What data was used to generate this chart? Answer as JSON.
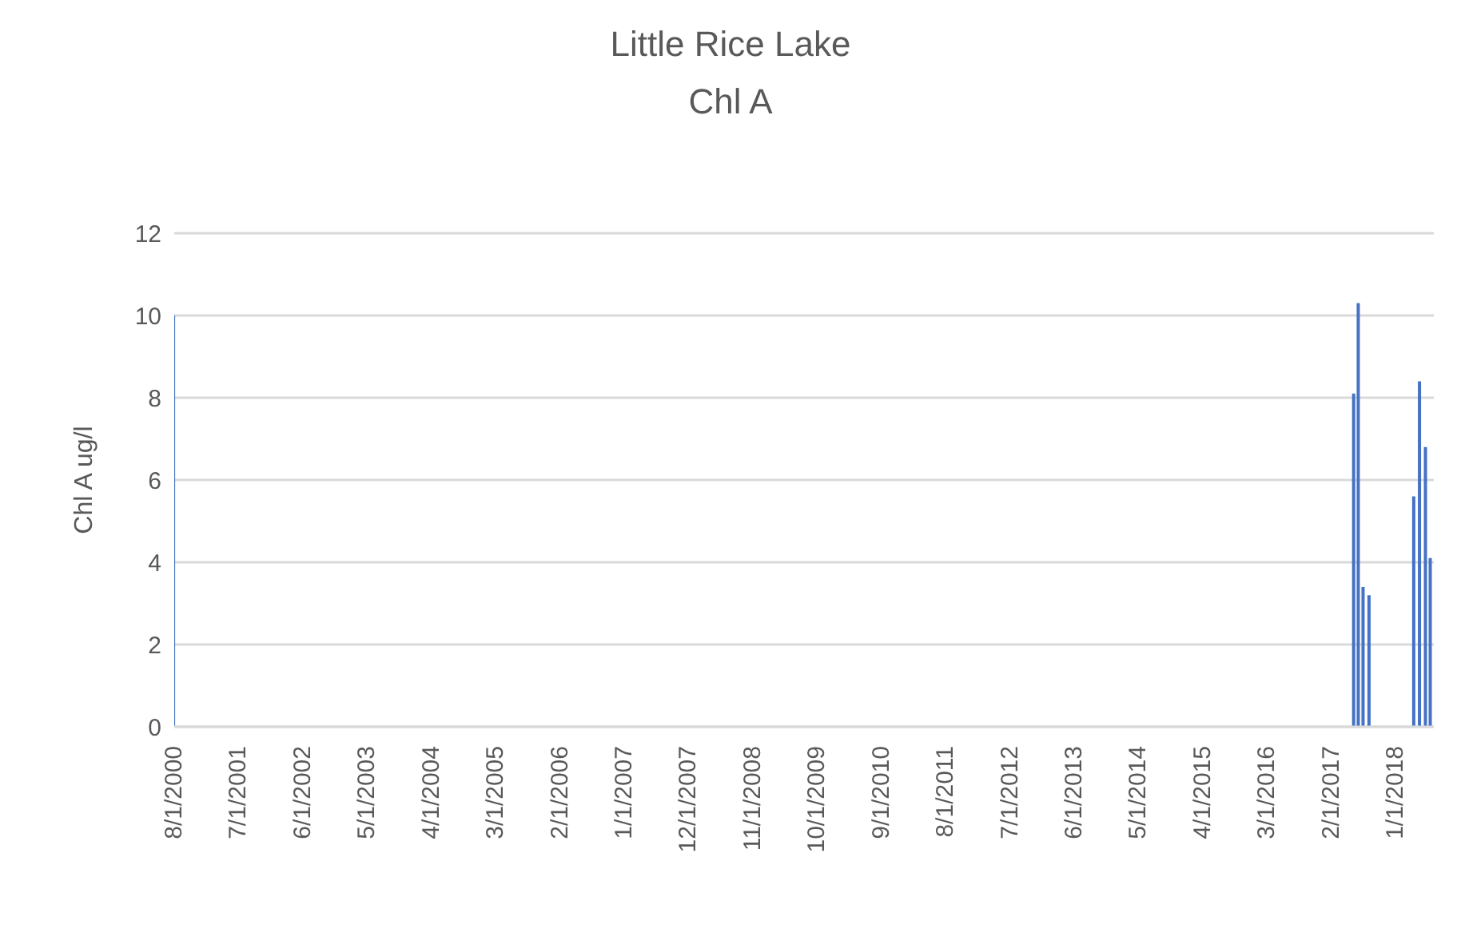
{
  "chart_data": {
    "type": "bar",
    "title": "Little Rice Lake",
    "subtitle": "Chl A",
    "ylabel": "Chl A ug/l",
    "x": [
      "2000-08-01",
      "2017-06-01",
      "2017-06-25",
      "2017-07-20",
      "2017-08-20",
      "2018-04-10",
      "2018-05-10",
      "2018-06-10",
      "2018-07-05"
    ],
    "values": [
      10.0,
      8.1,
      10.3,
      3.4,
      3.2,
      5.6,
      8.4,
      6.8,
      4.1
    ],
    "color": "#4472c4",
    "xlim": [
      "2000-08-01",
      "2018-07-20"
    ],
    "xticks": [
      {
        "value": "2000-08-01",
        "label": "8/1/2000"
      },
      {
        "value": "2001-07-01",
        "label": "7/1/2001"
      },
      {
        "value": "2002-06-01",
        "label": "6/1/2002"
      },
      {
        "value": "2003-05-01",
        "label": "5/1/2003"
      },
      {
        "value": "2004-04-01",
        "label": "4/1/2004"
      },
      {
        "value": "2005-03-01",
        "label": "3/1/2005"
      },
      {
        "value": "2006-02-01",
        "label": "2/1/2006"
      },
      {
        "value": "2007-01-01",
        "label": "1/1/2007"
      },
      {
        "value": "2007-12-01",
        "label": "12/1/2007"
      },
      {
        "value": "2008-11-01",
        "label": "11/1/2008"
      },
      {
        "value": "2009-10-01",
        "label": "10/1/2009"
      },
      {
        "value": "2010-09-01",
        "label": "9/1/2010"
      },
      {
        "value": "2011-08-01",
        "label": "8/1/2011"
      },
      {
        "value": "2012-07-01",
        "label": "7/1/2012"
      },
      {
        "value": "2013-06-01",
        "label": "6/1/2013"
      },
      {
        "value": "2014-05-01",
        "label": "5/1/2014"
      },
      {
        "value": "2015-04-01",
        "label": "4/1/2015"
      },
      {
        "value": "2016-03-01",
        "label": "3/1/2016"
      },
      {
        "value": "2017-02-01",
        "label": "2/1/2017"
      },
      {
        "value": "2018-01-01",
        "label": "1/1/2018"
      }
    ],
    "ylim": [
      0,
      12
    ],
    "yticks": [
      0,
      2,
      4,
      6,
      8,
      10,
      12
    ],
    "grid": "y",
    "legend": false
  }
}
